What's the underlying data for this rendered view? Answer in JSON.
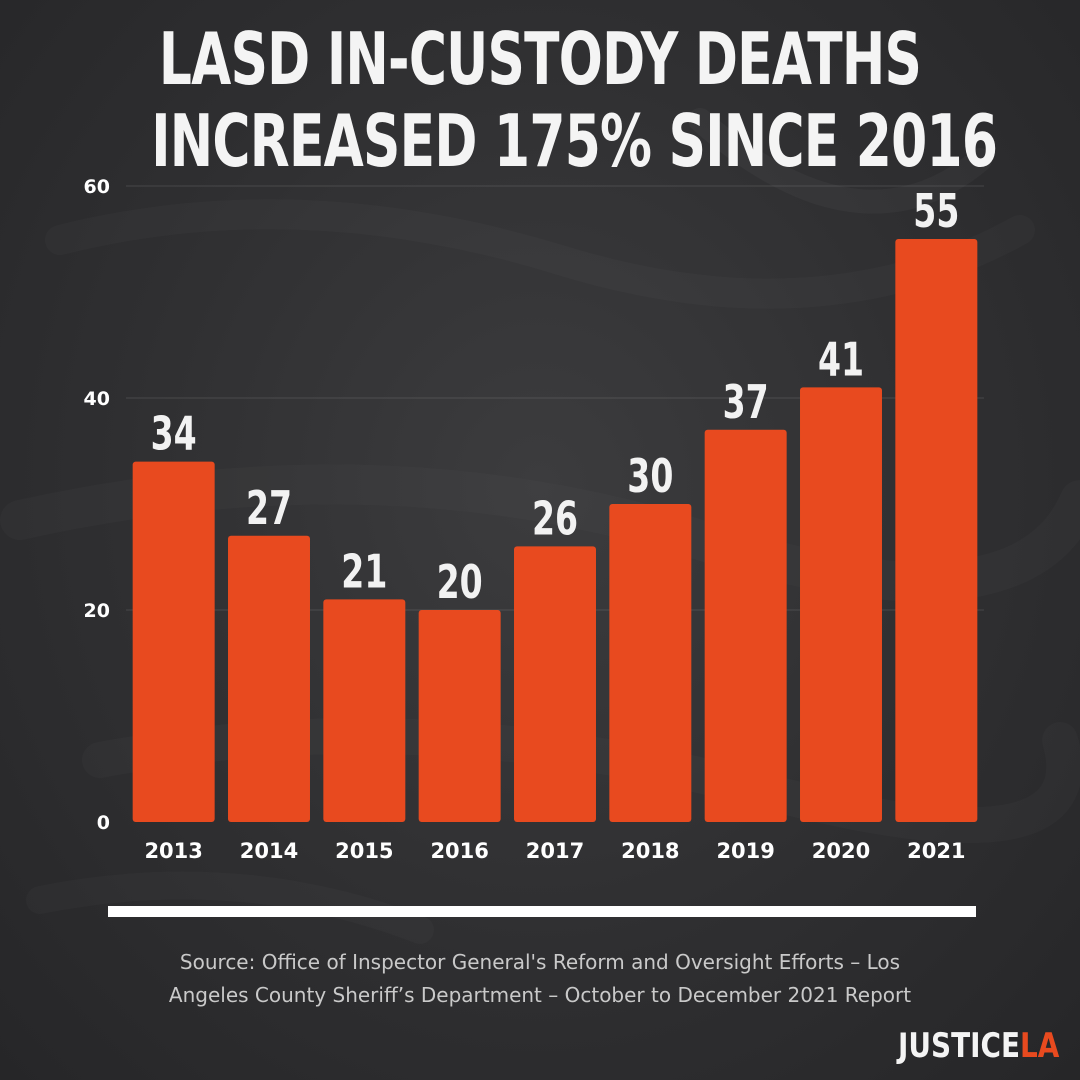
{
  "title_line1": "LASD IN-CUSTODY DEATHS",
  "title_line2": "INCREASED 175% SINCE 2016",
  "source_line1": "Source: Office of Inspector General's Reform and Oversight Efforts – Los",
  "source_line2": "Angeles County Sheriff’s Department – October to December 2021 Report",
  "logo": {
    "part1": "JUSTICE",
    "part2": "LA",
    "part2_color": "#e84a1f"
  },
  "colors": {
    "bar": "#e84a1f",
    "background": "#2f2f31",
    "text": "#ffffff"
  },
  "chart_data": {
    "type": "bar",
    "title": "LASD IN-CUSTODY DEATHS INCREASED 175% SINCE 2016",
    "categories": [
      "2013",
      "2014",
      "2015",
      "2016",
      "2017",
      "2018",
      "2019",
      "2020",
      "2021"
    ],
    "values": [
      34,
      27,
      21,
      20,
      26,
      30,
      37,
      41,
      55
    ],
    "data_labels": [
      "34",
      "27",
      "21",
      "20",
      "26",
      "30",
      "37",
      "41",
      "55"
    ],
    "y_ticks": [
      "0",
      "20",
      "40",
      "60"
    ],
    "ylim": [
      0,
      60
    ],
    "grid": true,
    "legend": "none",
    "xlabel": "",
    "ylabel": ""
  }
}
